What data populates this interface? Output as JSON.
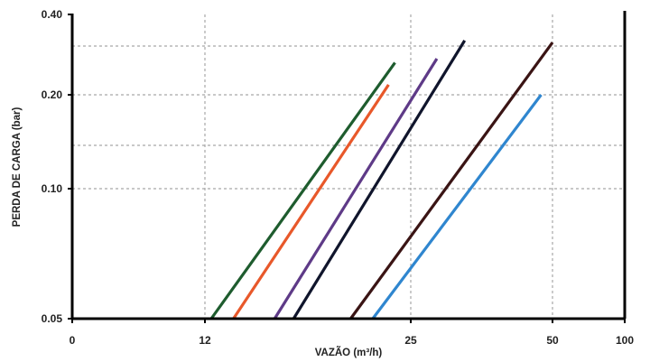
{
  "chart_data": {
    "type": "line",
    "title": "",
    "xlabel": "VAZÃO (m³/h)",
    "ylabel": "PERDA DE CARGA (bar)",
    "x_ticks": [
      "0",
      "12",
      "25",
      "50",
      "100"
    ],
    "y_ticks": [
      "0.05",
      "0.10",
      "0.20",
      "0.40"
    ],
    "grid": true,
    "legend": "none",
    "series": [
      {
        "color": "#1e5c2e",
        "x": [
          12.4,
          24.0
        ],
        "y": [
          0.05,
          0.28
        ]
      },
      {
        "color": "#e8582a",
        "x": [
          13.8,
          23.6
        ],
        "y": [
          0.05,
          0.225
        ]
      },
      {
        "color": "#5e3a87",
        "x": [
          16.4,
          29.6
        ],
        "y": [
          0.05,
          0.29
        ]
      },
      {
        "color": "#10152c",
        "x": [
          17.6,
          34.5
        ],
        "y": [
          0.05,
          0.335
        ]
      },
      {
        "color": "#3a1414",
        "x": [
          21.2,
          50.0
        ],
        "y": [
          0.05,
          0.33
        ]
      },
      {
        "color": "#2f86cf",
        "x": [
          22.6,
          48.0
        ],
        "y": [
          0.05,
          0.2
        ]
      }
    ]
  }
}
